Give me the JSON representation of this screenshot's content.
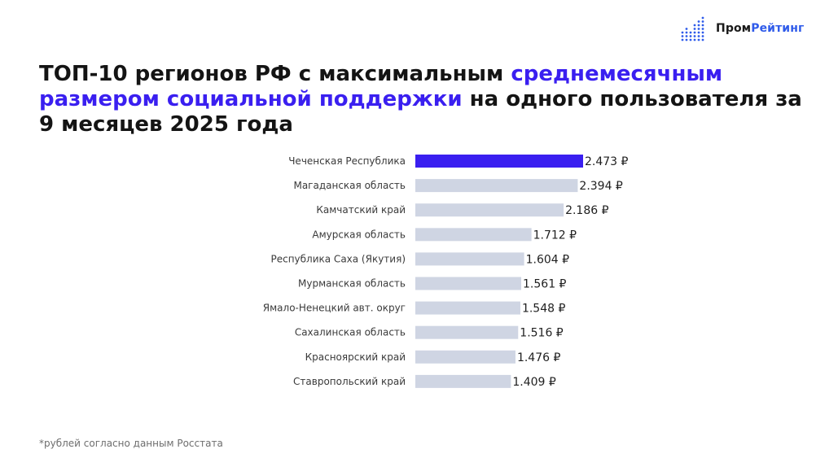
{
  "brand": {
    "name_part1": "Пром",
    "name_part2": "Рейтинг",
    "mark_icon": "bar-dots-logo",
    "colors": {
      "dark": "#1a1a1a",
      "blue": "#2f5bea"
    }
  },
  "title": {
    "part1": "ТОП-10 регионов РФ с максимальным ",
    "highlight": "среднемесячным размером социальной поддержки",
    "part2": " на одного пользователя за 9 месяцев 2025 года"
  },
  "chart_data": {
    "type": "bar",
    "orientation": "horizontal",
    "categories": [
      "Чеченская Республика",
      "Магаданская область",
      "Камчатский край",
      "Амурская область",
      "Республика Саха (Якутия)",
      "Мурманская область",
      "Ямало-Ненецкий авт. округ",
      "Сахалинская область",
      "Красноярский край",
      "Ставропольский край"
    ],
    "values": [
      2473,
      2394,
      2186,
      1712,
      1604,
      1561,
      1548,
      1516,
      1476,
      1409
    ],
    "value_labels": [
      "2.473 ₽",
      "2.394 ₽",
      "2.186 ₽",
      "1.712 ₽",
      "1.604 ₽",
      "1.561 ₽",
      "1.548 ₽",
      "1.516 ₽",
      "1.476 ₽",
      "1.409 ₽"
    ],
    "colors": {
      "highlight": "#3a1ff0",
      "default": "#cfd5e3"
    },
    "highlight_index": 0,
    "xlim": [
      0,
      2473
    ],
    "grid": false
  },
  "footnote": "*рублей согласно данным Росстата"
}
